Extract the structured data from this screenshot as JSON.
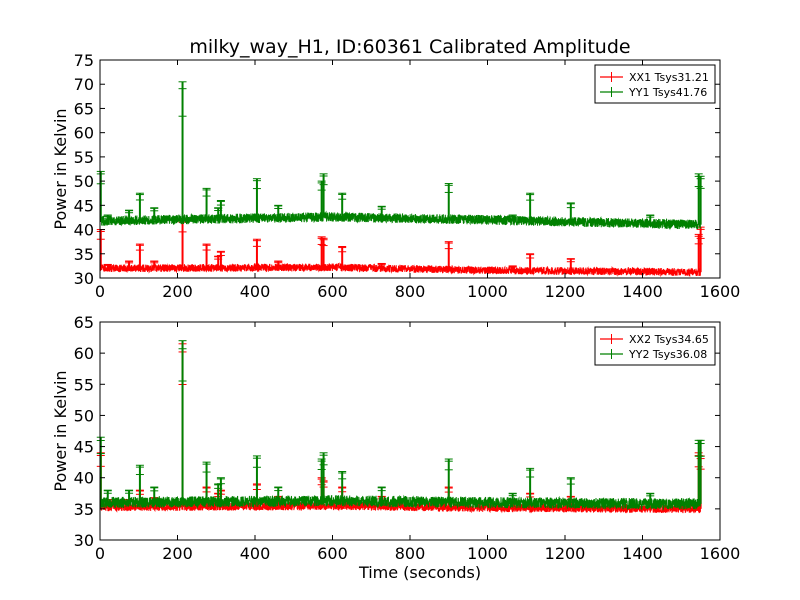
{
  "figure": {
    "title": "milky_way_H1, ID:60361 Calibrated Amplitude"
  },
  "chart_data": [
    {
      "type": "line",
      "title": "milky_way_H1, ID:60361 Calibrated Amplitude",
      "xlabel": "",
      "ylabel": "Power in Kelvin",
      "xlim": [
        0,
        1600
      ],
      "ylim": [
        30,
        75
      ],
      "x_ticks": [
        "0",
        "200",
        "400",
        "600",
        "800",
        "1000",
        "1200",
        "1400",
        "1600"
      ],
      "y_ticks": [
        "30",
        "35",
        "40",
        "45",
        "50",
        "55",
        "60",
        "65",
        "70",
        "75"
      ],
      "grid": false,
      "legend_position": "top-right",
      "series": [
        {
          "name": "XX1 Tsys31.21",
          "color": "#ff0000",
          "x_range": [
            0,
            1550
          ],
          "baseline": [
            [
              0,
              32.0
            ],
            [
              600,
              32.2
            ],
            [
              1000,
              31.6
            ],
            [
              1550,
              31.2
            ]
          ],
          "noise": 0.8,
          "spikes": [
            [
              2,
              40.0
            ],
            [
              20,
              32.8
            ],
            [
              75,
              33.5
            ],
            [
              103,
              37.0
            ],
            [
              140,
              33.5
            ],
            [
              213,
              42.0
            ],
            [
              275,
              37.0
            ],
            [
              305,
              34.5
            ],
            [
              312,
              35.5
            ],
            [
              405,
              38.0
            ],
            [
              460,
              33.5
            ],
            [
              572,
              38.5
            ],
            [
              577,
              38.2
            ],
            [
              625,
              36.5
            ],
            [
              727,
              33.0
            ],
            [
              900,
              37.5
            ],
            [
              1065,
              32.5
            ],
            [
              1110,
              35.0
            ],
            [
              1215,
              34.0
            ],
            [
              1545,
              39.0
            ],
            [
              1550,
              40.5
            ]
          ]
        },
        {
          "name": "YY1 Tsys41.76",
          "color": "#008000",
          "x_range": [
            0,
            1550
          ],
          "baseline": [
            [
              0,
              41.8
            ],
            [
              600,
              42.6
            ],
            [
              1000,
              42.0
            ],
            [
              1550,
              41.0
            ]
          ],
          "noise": 1.0,
          "spikes": [
            [
              2,
              52.0
            ],
            [
              20,
              43.0
            ],
            [
              75,
              44.0
            ],
            [
              103,
              47.5
            ],
            [
              140,
              44.5
            ],
            [
              213,
              70.5
            ],
            [
              275,
              48.5
            ],
            [
              305,
              44.5
            ],
            [
              312,
              46.0
            ],
            [
              405,
              50.5
            ],
            [
              460,
              45.0
            ],
            [
              572,
              50.0
            ],
            [
              577,
              51.5
            ],
            [
              625,
              47.5
            ],
            [
              727,
              44.8
            ],
            [
              900,
              49.5
            ],
            [
              1065,
              43.0
            ],
            [
              1110,
              47.5
            ],
            [
              1215,
              45.5
            ],
            [
              1420,
              43.0
            ],
            [
              1545,
              51.5
            ],
            [
              1550,
              51.0
            ]
          ]
        }
      ]
    },
    {
      "type": "line",
      "title": "",
      "xlabel": "Time (seconds)",
      "ylabel": "Power in Kelvin",
      "xlim": [
        0,
        1600
      ],
      "ylim": [
        30,
        65
      ],
      "x_ticks": [
        "0",
        "200",
        "400",
        "600",
        "800",
        "1000",
        "1200",
        "1400",
        "1600"
      ],
      "y_ticks": [
        "30",
        "35",
        "40",
        "45",
        "50",
        "55",
        "60",
        "65"
      ],
      "grid": false,
      "legend_position": "top-right",
      "series": [
        {
          "name": "XX2 Tsys34.65",
          "color": "#ff0000",
          "x_range": [
            0,
            1550
          ],
          "baseline": [
            [
              0,
              35.3
            ],
            [
              600,
              35.5
            ],
            [
              1000,
              35.2
            ],
            [
              1550,
              35.0
            ]
          ],
          "noise": 0.7,
          "spikes": [
            [
              2,
              44.0
            ],
            [
              20,
              36.5
            ],
            [
              75,
              36.5
            ],
            [
              103,
              38.0
            ],
            [
              140,
              36.8
            ],
            [
              213,
              61.5
            ],
            [
              275,
              38.5
            ],
            [
              305,
              37.5
            ],
            [
              312,
              38.0
            ],
            [
              405,
              39.0
            ],
            [
              460,
              37.0
            ],
            [
              572,
              40.0
            ],
            [
              577,
              39.5
            ],
            [
              625,
              38.5
            ],
            [
              727,
              37.0
            ],
            [
              900,
              38.5
            ],
            [
              1065,
              36.5
            ],
            [
              1110,
              37.5
            ],
            [
              1215,
              37.0
            ],
            [
              1545,
              44.0
            ],
            [
              1550,
              43.5
            ]
          ]
        },
        {
          "name": "YY2 Tsys36.08",
          "color": "#008000",
          "x_range": [
            0,
            1550
          ],
          "baseline": [
            [
              0,
              36.0
            ],
            [
              600,
              36.3
            ],
            [
              1000,
              36.0
            ],
            [
              1550,
              35.8
            ]
          ],
          "noise": 0.9,
          "spikes": [
            [
              2,
              46.5
            ],
            [
              20,
              38.0
            ],
            [
              75,
              38.0
            ],
            [
              103,
              42.0
            ],
            [
              140,
              38.5
            ],
            [
              213,
              62.0
            ],
            [
              275,
              42.5
            ],
            [
              305,
              39.0
            ],
            [
              312,
              40.0
            ],
            [
              405,
              43.5
            ],
            [
              460,
              38.5
            ],
            [
              572,
              43.0
            ],
            [
              577,
              44.0
            ],
            [
              625,
              41.0
            ],
            [
              727,
              38.5
            ],
            [
              900,
              43.0
            ],
            [
              1065,
              37.5
            ],
            [
              1110,
              41.5
            ],
            [
              1215,
              40.0
            ],
            [
              1420,
              37.5
            ],
            [
              1545,
              46.0
            ],
            [
              1550,
              46.0
            ]
          ]
        }
      ]
    }
  ]
}
